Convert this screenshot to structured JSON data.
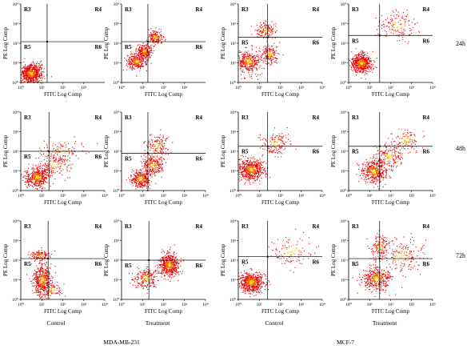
{
  "figure": {
    "row_labels": [
      "24h",
      "48h",
      "72h"
    ],
    "column_labels": [
      "Control",
      "Treatment",
      "Control",
      "Treatment"
    ],
    "group_labels": [
      "MDA-MB-231",
      "MCF-7"
    ]
  },
  "chart_data": [
    {
      "type": "scatter",
      "cell_line": "MDA-MB-231",
      "condition": "Control",
      "time": "24h",
      "xlabel": "FITC Log Comp",
      "ylabel": "PE Log Comp",
      "xscale": "log",
      "yscale": "log",
      "xlim": [
        1,
        10000
      ],
      "ylim": [
        1,
        10000
      ],
      "x_ticks": [
        "10⁰",
        "10¹",
        "10²",
        "10³"
      ],
      "y_ticks": [
        "10⁰",
        "10¹",
        "10²",
        "10³",
        "10⁴"
      ],
      "gate_x": 18,
      "gate_y": 120,
      "regions": [
        "R3",
        "R4",
        "R5",
        "R6"
      ],
      "clusters": [
        {
          "cx": 3,
          "cy": 3,
          "sx": 0.25,
          "sy": 0.25,
          "weight": 1
        }
      ]
    },
    {
      "type": "scatter",
      "cell_line": "MDA-MB-231",
      "condition": "Treatment",
      "time": "24h",
      "xlabel": "FITC Log Comp",
      "ylabel": "PE Log Comp",
      "xscale": "log",
      "yscale": "log",
      "xlim": [
        1,
        10000
      ],
      "ylim": [
        1,
        10000
      ],
      "x_ticks": [
        "10⁰",
        "10¹",
        "10²",
        "10³"
      ],
      "y_ticks": [
        "10⁰",
        "10¹",
        "10²",
        "10³",
        "10⁴"
      ],
      "gate_x": 18,
      "gate_y": 120,
      "regions": [
        "R3",
        "R4",
        "R5",
        "R6"
      ],
      "clusters": [
        {
          "cx": 5,
          "cy": 12,
          "sx": 0.22,
          "sy": 0.22,
          "weight": 0.4
        },
        {
          "cx": 12,
          "cy": 40,
          "sx": 0.18,
          "sy": 0.18,
          "weight": 0.35
        },
        {
          "cx": 40,
          "cy": 200,
          "sx": 0.18,
          "sy": 0.18,
          "weight": 0.25
        }
      ]
    },
    {
      "type": "scatter",
      "cell_line": "MCF-7",
      "condition": "Control",
      "time": "24h",
      "xlabel": "FITC Log Comp",
      "ylabel": "PE Log Comp",
      "xscale": "log",
      "yscale": "log",
      "xlim": [
        1,
        10000
      ],
      "ylim": [
        1,
        10000
      ],
      "x_ticks": [
        "10⁰",
        "10¹",
        "10²",
        "10³",
        "10⁴"
      ],
      "y_ticks": [
        "10⁰",
        "10¹",
        "10²",
        "10³",
        "10⁴"
      ],
      "gate_x": 25,
      "gate_y": 200,
      "regions": [
        "R3",
        "R4",
        "R5",
        "R6"
      ],
      "clusters": [
        {
          "cx": 3,
          "cy": 12,
          "sx": 0.3,
          "sy": 0.3,
          "weight": 0.55
        },
        {
          "cx": 30,
          "cy": 30,
          "sx": 0.22,
          "sy": 0.25,
          "weight": 0.25
        },
        {
          "cx": 20,
          "cy": 500,
          "sx": 0.25,
          "sy": 0.2,
          "weight": 0.2
        }
      ]
    },
    {
      "type": "scatter",
      "cell_line": "MCF-7",
      "condition": "Treatment",
      "time": "24h",
      "xlabel": "FITC Log Comp",
      "ylabel": "PE Log Comp",
      "xscale": "log",
      "yscale": "log",
      "xlim": [
        1,
        10000
      ],
      "ylim": [
        1,
        10000
      ],
      "x_ticks": [
        "10⁰",
        "10¹",
        "10²",
        "10³",
        "10⁴"
      ],
      "y_ticks": [
        "10⁰",
        "10¹",
        "10²",
        "10³",
        "10⁴"
      ],
      "gate_x": 30,
      "gate_y": 250,
      "regions": [
        "R3",
        "R4",
        "R5",
        "R6"
      ],
      "clusters": [
        {
          "cx": 4,
          "cy": 10,
          "sx": 0.25,
          "sy": 0.25,
          "weight": 0.8
        },
        {
          "cx": 200,
          "cy": 800,
          "sx": 0.45,
          "sy": 0.4,
          "weight": 0.2
        }
      ]
    },
    {
      "type": "scatter",
      "cell_line": "MDA-MB-231",
      "condition": "Control",
      "time": "48h",
      "xlabel": "FITC Log Comp",
      "ylabel": "PE Log Comp",
      "xscale": "log",
      "yscale": "log",
      "xlim": [
        1,
        10000
      ],
      "ylim": [
        1,
        10000
      ],
      "x_ticks": [
        "10⁰",
        "10¹",
        "10²",
        "10³",
        "10⁴"
      ],
      "y_ticks": [
        "10⁰",
        "10¹",
        "10²",
        "10³",
        "10⁴"
      ],
      "gate_x": 22,
      "gate_y": 100,
      "regions": [
        "R3",
        "R4",
        "R5",
        "R6"
      ],
      "clusters": [
        {
          "cx": 6,
          "cy": 5,
          "sx": 0.3,
          "sy": 0.25,
          "weight": 0.65
        },
        {
          "cx": 40,
          "cy": 20,
          "sx": 0.4,
          "sy": 0.3,
          "weight": 0.2
        },
        {
          "cx": 100,
          "cy": 120,
          "sx": 0.5,
          "sy": 0.25,
          "weight": 0.15
        }
      ]
    },
    {
      "type": "scatter",
      "cell_line": "MDA-MB-231",
      "condition": "Treatment",
      "time": "48h",
      "xlabel": "FITC Log Comp",
      "ylabel": "PE Log Comp",
      "xscale": "log",
      "yscale": "log",
      "xlim": [
        1,
        10000
      ],
      "ylim": [
        1,
        10000
      ],
      "x_ticks": [
        "10⁰",
        "10¹",
        "10²",
        "10³",
        "10⁴"
      ],
      "y_ticks": [
        "10⁰",
        "10¹",
        "10²",
        "10³",
        "10⁴"
      ],
      "gate_x": 18,
      "gate_y": 80,
      "regions": [
        "R3",
        "R4",
        "R5",
        "R6"
      ],
      "clusters": [
        {
          "cx": 8,
          "cy": 4,
          "sx": 0.25,
          "sy": 0.22,
          "weight": 0.45
        },
        {
          "cx": 30,
          "cy": 20,
          "sx": 0.25,
          "sy": 0.25,
          "weight": 0.35
        },
        {
          "cx": 50,
          "cy": 200,
          "sx": 0.3,
          "sy": 0.25,
          "weight": 0.2
        }
      ]
    },
    {
      "type": "scatter",
      "cell_line": "MCF-7",
      "condition": "Control",
      "time": "48h",
      "xlabel": "FITC Log Comp",
      "ylabel": "PE Log Comp",
      "xscale": "log",
      "yscale": "log",
      "xlim": [
        1,
        10000
      ],
      "ylim": [
        1,
        10000
      ],
      "x_ticks": [
        "10⁰",
        "10¹",
        "10²",
        "10³",
        "10⁴"
      ],
      "y_ticks": [
        "10⁰",
        "10¹",
        "10²",
        "10³",
        "10⁴"
      ],
      "gate_x": 25,
      "gate_y": 180,
      "regions": [
        "R3",
        "R4",
        "R5",
        "R6"
      ],
      "clusters": [
        {
          "cx": 4,
          "cy": 12,
          "sx": 0.3,
          "sy": 0.28,
          "weight": 0.8
        },
        {
          "cx": 60,
          "cy": 250,
          "sx": 0.35,
          "sy": 0.3,
          "weight": 0.2
        }
      ]
    },
    {
      "type": "scatter",
      "cell_line": "MCF-7",
      "condition": "Treatment",
      "time": "48h",
      "xlabel": "FITC Log Comp",
      "ylabel": "PE Log Comp",
      "xscale": "log",
      "yscale": "log",
      "xlim": [
        1,
        10000
      ],
      "ylim": [
        1,
        10000
      ],
      "x_ticks": [
        "10⁰",
        "10¹",
        "10²",
        "10³",
        "10⁴"
      ],
      "y_ticks": [
        "10⁰",
        "10¹",
        "10²",
        "10³",
        "10⁴"
      ],
      "gate_x": 30,
      "gate_y": 180,
      "regions": [
        "R3",
        "R4",
        "R5",
        "R6"
      ],
      "clusters": [
        {
          "cx": 15,
          "cy": 10,
          "sx": 0.3,
          "sy": 0.3,
          "weight": 0.6
        },
        {
          "cx": 80,
          "cy": 60,
          "sx": 0.35,
          "sy": 0.3,
          "weight": 0.25
        },
        {
          "cx": 500,
          "cy": 400,
          "sx": 0.35,
          "sy": 0.3,
          "weight": 0.15
        }
      ]
    },
    {
      "type": "scatter",
      "cell_line": "MDA-MB-231",
      "condition": "Control",
      "time": "72h",
      "xlabel": "FITC Log Comp",
      "ylabel": "PE Log Comp",
      "xscale": "log",
      "yscale": "log",
      "xlim": [
        1,
        10000
      ],
      "ylim": [
        1,
        10000
      ],
      "x_ticks": [
        "10⁰",
        "10¹",
        "10²",
        "10³",
        "10⁴"
      ],
      "y_ticks": [
        "10⁰",
        "10¹",
        "10²",
        "10³",
        "10⁴"
      ],
      "gate_x": 20,
      "gate_y": 120,
      "regions": [
        "R3",
        "R4",
        "R5",
        "R6"
      ],
      "clusters": [
        {
          "cx": 10,
          "cy": 10,
          "sx": 0.22,
          "sy": 0.4,
          "weight": 0.7
        },
        {
          "cx": 8,
          "cy": 180,
          "sx": 0.25,
          "sy": 0.12,
          "weight": 0.2
        },
        {
          "cx": 30,
          "cy": 3,
          "sx": 0.3,
          "sy": 0.2,
          "weight": 0.1
        }
      ]
    },
    {
      "type": "scatter",
      "cell_line": "MDA-MB-231",
      "condition": "Treatment",
      "time": "72h",
      "xlabel": "FITC Log Comp",
      "ylabel": "PE Log Comp",
      "xscale": "log",
      "yscale": "log",
      "xlim": [
        1,
        10000
      ],
      "ylim": [
        1,
        10000
      ],
      "x_ticks": [
        "10⁰",
        "10¹",
        "10²",
        "10³",
        "10⁴"
      ],
      "y_ticks": [
        "10⁰",
        "10¹",
        "10²",
        "10³",
        "10⁴"
      ],
      "gate_x": 20,
      "gate_y": 100,
      "regions": [
        "R3",
        "R4",
        "R5",
        "R6"
      ],
      "clusters": [
        {
          "cx": 180,
          "cy": 60,
          "sx": 0.22,
          "sy": 0.3,
          "weight": 0.7
        },
        {
          "cx": 15,
          "cy": 12,
          "sx": 0.3,
          "sy": 0.25,
          "weight": 0.3
        }
      ]
    },
    {
      "type": "scatter",
      "cell_line": "MCF-7",
      "condition": "Control",
      "time": "72h",
      "xlabel": "FITC Log Comp",
      "ylabel": "PE Log Comp",
      "xscale": "log",
      "yscale": "log",
      "xlim": [
        1,
        10000
      ],
      "ylim": [
        1,
        10000
      ],
      "x_ticks": [
        "10⁰",
        "10¹",
        "10²",
        "10³",
        "10⁴"
      ],
      "y_ticks": [
        "10⁰",
        "10¹",
        "10²",
        "10³",
        "10⁴"
      ],
      "gate_x": 25,
      "gate_y": 150,
      "regions": [
        "R3",
        "R4",
        "R5",
        "R6"
      ],
      "clusters": [
        {
          "cx": 4,
          "cy": 8,
          "sx": 0.3,
          "sy": 0.25,
          "weight": 0.85
        },
        {
          "cx": 300,
          "cy": 300,
          "sx": 0.55,
          "sy": 0.45,
          "weight": 0.15
        }
      ]
    },
    {
      "type": "scatter",
      "cell_line": "MCF-7",
      "condition": "Treatment",
      "time": "72h",
      "xlabel": "FITC Log Comp",
      "ylabel": "PE Log Comp",
      "xscale": "log",
      "yscale": "log",
      "xlim": [
        1,
        10000
      ],
      "ylim": [
        1,
        10000
      ],
      "x_ticks": [
        "10⁰",
        "10¹",
        "10²",
        "10³",
        "10⁴"
      ],
      "y_ticks": [
        "10⁰",
        "10¹",
        "10²",
        "10³",
        "10⁴"
      ],
      "gate_x": 30,
      "gate_y": 120,
      "regions": [
        "R3",
        "R4",
        "R5",
        "R6"
      ],
      "clusters": [
        {
          "cx": 20,
          "cy": 12,
          "sx": 0.35,
          "sy": 0.3,
          "weight": 0.55
        },
        {
          "cx": 30,
          "cy": 500,
          "sx": 0.25,
          "sy": 0.3,
          "weight": 0.2
        },
        {
          "cx": 300,
          "cy": 150,
          "sx": 0.5,
          "sy": 0.45,
          "weight": 0.25
        }
      ]
    }
  ]
}
